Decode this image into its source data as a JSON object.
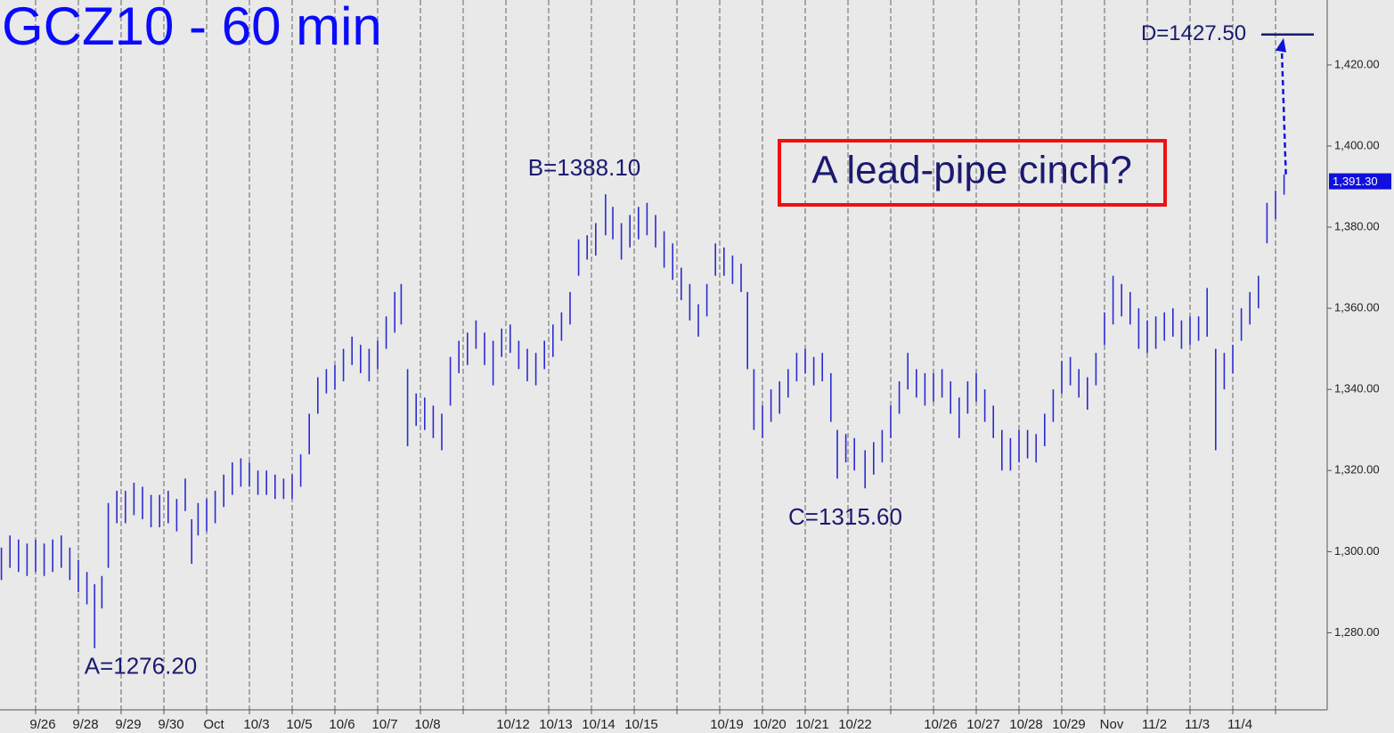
{
  "chart_data": {
    "type": "ohlc",
    "title": "GCZ10 - 60 min",
    "color": "#2b2bd0",
    "xlim": [
      -0.833,
      30.208
    ],
    "ylim": [
      1261,
      1436
    ],
    "yticks": [
      {
        "value": 1280,
        "label": "1,280.00"
      },
      {
        "value": 1300,
        "label": "1,300.00"
      },
      {
        "value": 1320,
        "label": "1,320.00"
      },
      {
        "value": 1340,
        "label": "1,340.00"
      },
      {
        "value": 1360,
        "label": "1,360.00"
      },
      {
        "value": 1380,
        "label": "1,380.00"
      },
      {
        "value": 1400,
        "label": "1,400.00"
      },
      {
        "value": 1420,
        "label": "1,420.00"
      }
    ],
    "xticks": [
      {
        "value": 0,
        "label": "9/26"
      },
      {
        "value": 1,
        "label": "9/28"
      },
      {
        "value": 2,
        "label": "9/29"
      },
      {
        "value": 3,
        "label": "9/30"
      },
      {
        "value": 4,
        "label": "Oct"
      },
      {
        "value": 5,
        "label": "10/3"
      },
      {
        "value": 6,
        "label": "10/5"
      },
      {
        "value": 7,
        "label": "10/6"
      },
      {
        "value": 8,
        "label": "10/7"
      },
      {
        "value": 9,
        "label": "10/8"
      },
      {
        "value": 10,
        "label": null
      },
      {
        "value": 11,
        "label": "10/12"
      },
      {
        "value": 12,
        "label": "10/13"
      },
      {
        "value": 13,
        "label": "10/14"
      },
      {
        "value": 14,
        "label": "10/15"
      },
      {
        "value": 15,
        "label": null
      },
      {
        "value": 16,
        "label": "10/19"
      },
      {
        "value": 17,
        "label": "10/20"
      },
      {
        "value": 18,
        "label": "10/21"
      },
      {
        "value": 19,
        "label": "10/22"
      },
      {
        "value": 20,
        "label": null
      },
      {
        "value": 21,
        "label": "10/26"
      },
      {
        "value": 22,
        "label": "10/27"
      },
      {
        "value": 23,
        "label": "10/28"
      },
      {
        "value": 24,
        "label": "10/29"
      },
      {
        "value": 25,
        "label": "Nov"
      },
      {
        "value": 26,
        "label": "11/2"
      },
      {
        "value": 27,
        "label": "11/3"
      },
      {
        "value": 28,
        "label": "11/4"
      },
      {
        "value": 29,
        "label": null
      }
    ],
    "x": [
      -0.8,
      -0.6,
      -0.4,
      -0.2,
      0,
      0.2,
      0.4,
      0.6,
      0.8,
      1.0,
      1.2,
      1.38,
      1.55,
      1.7,
      1.9,
      2.1,
      2.3,
      2.5,
      2.7,
      2.9,
      3.1,
      3.3,
      3.5,
      3.65,
      3.8,
      4.0,
      4.2,
      4.4,
      4.6,
      4.8,
      5.0,
      5.2,
      5.4,
      5.6,
      5.8,
      6.0,
      6.2,
      6.4,
      6.6,
      6.8,
      7.0,
      7.2,
      7.4,
      7.6,
      7.8,
      8.0,
      8.2,
      8.4,
      8.55,
      8.7,
      8.9,
      9.1,
      9.3,
      9.5,
      9.7,
      9.9,
      10.1,
      10.3,
      10.5,
      10.7,
      10.9,
      11.1,
      11.3,
      11.5,
      11.7,
      11.9,
      12.1,
      12.3,
      12.5,
      12.7,
      12.9,
      13.1,
      13.33,
      13.5,
      13.7,
      13.9,
      14.1,
      14.3,
      14.5,
      14.7,
      14.9,
      15.1,
      15.3,
      15.5,
      15.7,
      15.9,
      16.1,
      16.3,
      16.5,
      16.65,
      16.8,
      17.0,
      17.2,
      17.4,
      17.6,
      17.8,
      18.0,
      18.2,
      18.4,
      18.6,
      18.75,
      18.95,
      19.15,
      19.4,
      19.6,
      19.8,
      20.0,
      20.2,
      20.4,
      20.6,
      20.8,
      21.0,
      21.2,
      21.4,
      21.6,
      21.8,
      22.0,
      22.2,
      22.4,
      22.6,
      22.8,
      23.0,
      23.2,
      23.4,
      23.6,
      23.8,
      24.0,
      24.2,
      24.4,
      24.6,
      24.8,
      25.0,
      25.2,
      25.4,
      25.6,
      25.8,
      26.0,
      26.2,
      26.4,
      26.6,
      26.8,
      27.0,
      27.2,
      27.4,
      27.6,
      27.8,
      28.0,
      28.2,
      28.4,
      28.6,
      28.8,
      29.0,
      29.2
    ],
    "high": [
      1301,
      1304,
      1303,
      1302,
      1303,
      1302,
      1303,
      1304,
      1301,
      1298,
      1295,
      1292,
      1294,
      1312,
      1315,
      1315,
      1317,
      1316,
      1314,
      1314,
      1315,
      1313,
      1318,
      1308,
      1312,
      1313,
      1315,
      1319,
      1322,
      1323,
      1322,
      1320,
      1320,
      1319,
      1318,
      1319,
      1324,
      1334,
      1343,
      1345,
      1346,
      1350,
      1353,
      1351,
      1350,
      1352,
      1358,
      1364,
      1366,
      1345,
      1339,
      1338,
      1336,
      1334,
      1348,
      1352,
      1354,
      1357,
      1354,
      1352,
      1355,
      1356,
      1352,
      1350,
      1349,
      1352,
      1356,
      1359,
      1364,
      1377,
      1378,
      1381,
      1388.1,
      1385,
      1381,
      1383,
      1385,
      1386,
      1383,
      1379,
      1376,
      1370,
      1366,
      1361,
      1366,
      1376,
      1375,
      1373,
      1371,
      1364,
      1345,
      1336,
      1340,
      1342,
      1345,
      1349,
      1350,
      1348,
      1349,
      1344,
      1330,
      1329,
      1328,
      1325,
      1327,
      1330,
      1336,
      1342,
      1349,
      1345,
      1344,
      1344,
      1345,
      1342,
      1338,
      1342,
      1344,
      1340,
      1336,
      1330,
      1328,
      1330,
      1330,
      1329,
      1334,
      1340,
      1347,
      1348,
      1345,
      1343,
      1349,
      1359,
      1368,
      1366,
      1364,
      1360,
      1357,
      1358,
      1359,
      1360,
      1357,
      1358,
      1358,
      1365,
      1350,
      1349,
      1351,
      1360,
      1364,
      1368,
      1386,
      1389,
      1393
    ],
    "low": [
      1293,
      1296,
      1295,
      1294,
      1295,
      1294,
      1295,
      1296,
      1293,
      1290,
      1287,
      1276.2,
      1286,
      1296,
      1307,
      1307,
      1309,
      1308,
      1306,
      1306,
      1307,
      1305,
      1310,
      1297,
      1304,
      1305,
      1307,
      1311,
      1314,
      1316,
      1316,
      1314,
      1314,
      1313,
      1313,
      1313,
      1316,
      1324,
      1334,
      1339,
      1340,
      1342,
      1346,
      1344,
      1342,
      1345,
      1350,
      1354,
      1356,
      1326,
      1331,
      1330,
      1328,
      1325,
      1336,
      1344,
      1346,
      1350,
      1346,
      1341,
      1348,
      1349,
      1345,
      1342,
      1341,
      1345,
      1348,
      1352,
      1356,
      1368,
      1372,
      1373,
      1378,
      1377,
      1372,
      1375,
      1377,
      1378,
      1375,
      1370,
      1367,
      1362,
      1357,
      1353,
      1358,
      1368,
      1368,
      1366,
      1364,
      1345,
      1330,
      1328,
      1332,
      1334,
      1338,
      1342,
      1344,
      1341,
      1342,
      1332,
      1318,
      1322,
      1320,
      1315.6,
      1319,
      1322,
      1328,
      1334,
      1340,
      1338,
      1336,
      1337,
      1338,
      1334,
      1328,
      1334,
      1337,
      1332,
      1328,
      1320,
      1320,
      1322,
      1323,
      1322,
      1326,
      1332,
      1339,
      1341,
      1338,
      1335,
      1341,
      1351,
      1356,
      1358,
      1356,
      1350,
      1349,
      1350,
      1352,
      1353,
      1350,
      1351,
      1352,
      1353,
      1325,
      1340,
      1344,
      1352,
      1356,
      1360,
      1376,
      1382,
      1388
    ],
    "last_price": 1391.3,
    "last_price_label": "1,391.30",
    "annotations": [
      {
        "text": "A=1276.20",
        "value": 1276.2
      },
      {
        "text": "B=1388.10",
        "value": 1388.1
      },
      {
        "text": "C=1315.60",
        "value": 1315.6
      },
      {
        "text": "D=1427.50",
        "value": 1427.5
      }
    ],
    "callout": "A lead-pipe cinch?"
  }
}
